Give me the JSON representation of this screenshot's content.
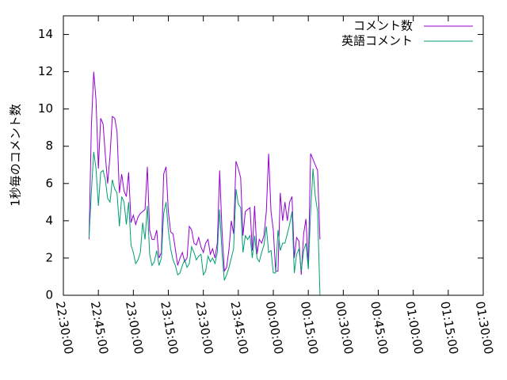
{
  "chart_data": {
    "type": "line",
    "title": "",
    "xlabel": "",
    "ylabel": "1秒毎のコメント数",
    "ylim": [
      0,
      15
    ],
    "yticks": [
      0,
      2,
      4,
      6,
      8,
      10,
      12,
      14
    ],
    "xlim": [
      "22:30:00",
      "01:30:00"
    ],
    "xtick_labels": [
      "22:30:00",
      "22:45:00",
      "23:00:00",
      "23:15:00",
      "23:30:00",
      "23:45:00",
      "00:00:00",
      "00:15:00",
      "00:30:00",
      "00:45:00",
      "01:00:00",
      "01:15:00",
      "01:30:00"
    ],
    "grid": false,
    "legend_position": "top-right",
    "series": [
      {
        "name": "コメント数",
        "color": "#9400d3",
        "points": [
          [
            "22:41:00",
            3.0
          ],
          [
            "22:42:00",
            9.0
          ],
          [
            "22:43:00",
            12.0
          ],
          [
            "22:44:00",
            10.5
          ],
          [
            "22:45:00",
            6.8
          ],
          [
            "22:46:00",
            9.5
          ],
          [
            "22:47:00",
            9.2
          ],
          [
            "22:48:00",
            7.5
          ],
          [
            "22:49:00",
            6.0
          ],
          [
            "22:50:00",
            7.5
          ],
          [
            "22:51:00",
            9.6
          ],
          [
            "22:52:00",
            9.5
          ],
          [
            "22:53:00",
            8.8
          ],
          [
            "22:54:00",
            5.5
          ],
          [
            "22:55:00",
            6.5
          ],
          [
            "22:56:00",
            5.6
          ],
          [
            "22:57:00",
            5.3
          ],
          [
            "22:58:00",
            6.6
          ],
          [
            "22:59:00",
            3.9
          ],
          [
            "23:00:00",
            4.3
          ],
          [
            "23:01:00",
            3.8
          ],
          [
            "23:02:00",
            4.2
          ],
          [
            "23:03:00",
            4.4
          ],
          [
            "23:04:00",
            4.5
          ],
          [
            "23:05:00",
            4.6
          ],
          [
            "23:06:00",
            6.9
          ],
          [
            "23:07:00",
            3.5
          ],
          [
            "23:08:00",
            3.0
          ],
          [
            "23:09:00",
            3.0
          ],
          [
            "23:10:00",
            3.5
          ],
          [
            "23:11:00",
            2.0
          ],
          [
            "23:12:00",
            2.3
          ],
          [
            "23:13:00",
            6.5
          ],
          [
            "23:14:00",
            6.9
          ],
          [
            "23:15:00",
            4.5
          ],
          [
            "23:16:00",
            3.4
          ],
          [
            "23:17:00",
            3.3
          ],
          [
            "23:18:00",
            2.5
          ],
          [
            "23:19:00",
            1.6
          ],
          [
            "23:20:00",
            2.0
          ],
          [
            "23:21:00",
            2.3
          ],
          [
            "23:22:00",
            1.8
          ],
          [
            "23:23:00",
            2.0
          ],
          [
            "23:24:00",
            3.7
          ],
          [
            "23:25:00",
            3.5
          ],
          [
            "23:26:00",
            2.8
          ],
          [
            "23:27:00",
            2.7
          ],
          [
            "23:28:00",
            3.1
          ],
          [
            "23:29:00",
            2.6
          ],
          [
            "23:30:00",
            2.3
          ],
          [
            "23:31:00",
            2.8
          ],
          [
            "23:32:00",
            3.0
          ],
          [
            "23:33:00",
            2.2
          ],
          [
            "23:34:00",
            2.5
          ],
          [
            "23:35:00",
            2.0
          ],
          [
            "23:36:00",
            2.8
          ],
          [
            "23:37:00",
            6.7
          ],
          [
            "23:38:00",
            3.5
          ],
          [
            "23:39:00",
            1.3
          ],
          [
            "23:40:00",
            1.5
          ],
          [
            "23:41:00",
            2.5
          ],
          [
            "23:42:00",
            4.0
          ],
          [
            "23:43:00",
            3.3
          ],
          [
            "23:44:00",
            7.2
          ],
          [
            "23:45:00",
            6.8
          ],
          [
            "23:46:00",
            6.3
          ],
          [
            "23:47:00",
            3.2
          ],
          [
            "23:48:00",
            4.5
          ],
          [
            "23:49:00",
            4.6
          ],
          [
            "23:50:00",
            4.7
          ],
          [
            "23:51:00",
            2.4
          ],
          [
            "23:52:00",
            4.8
          ],
          [
            "23:53:00",
            2.2
          ],
          [
            "23:54:00",
            3.0
          ],
          [
            "23:55:00",
            2.8
          ],
          [
            "23:56:00",
            3.2
          ],
          [
            "23:57:00",
            4.5
          ],
          [
            "23:58:00",
            7.6
          ],
          [
            "23:59:00",
            4.5
          ],
          [
            "00:00:00",
            3.5
          ],
          [
            "00:01:00",
            1.3
          ],
          [
            "00:02:00",
            1.3
          ],
          [
            "00:03:00",
            5.5
          ],
          [
            "00:04:00",
            4.0
          ],
          [
            "00:05:00",
            5.0
          ],
          [
            "00:06:00",
            4.0
          ],
          [
            "00:07:00",
            5.0
          ],
          [
            "00:08:00",
            5.3
          ],
          [
            "00:09:00",
            2.0
          ],
          [
            "00:10:00",
            3.1
          ],
          [
            "00:11:00",
            2.9
          ],
          [
            "00:12:00",
            1.1
          ],
          [
            "00:13:00",
            3.3
          ],
          [
            "00:14:00",
            4.1
          ],
          [
            "00:15:00",
            1.5
          ],
          [
            "00:16:00",
            7.6
          ],
          [
            "00:17:00",
            7.3
          ],
          [
            "00:18:00",
            7.0
          ],
          [
            "00:19:00",
            6.7
          ],
          [
            "00:20:00",
            3.0
          ]
        ]
      },
      {
        "name": "英語コメント",
        "color": "#009e73",
        "points": [
          [
            "22:41:00",
            3.1
          ],
          [
            "22:42:00",
            5.5
          ],
          [
            "22:43:00",
            7.7
          ],
          [
            "22:44:00",
            6.8
          ],
          [
            "22:45:00",
            4.8
          ],
          [
            "22:46:00",
            6.6
          ],
          [
            "22:47:00",
            6.7
          ],
          [
            "22:48:00",
            6.2
          ],
          [
            "22:49:00",
            5.2
          ],
          [
            "22:50:00",
            5.0
          ],
          [
            "22:51:00",
            6.2
          ],
          [
            "22:52:00",
            5.7
          ],
          [
            "22:53:00",
            5.5
          ],
          [
            "22:54:00",
            3.7
          ],
          [
            "22:55:00",
            5.3
          ],
          [
            "22:56:00",
            5.0
          ],
          [
            "22:57:00",
            3.8
          ],
          [
            "22:58:00",
            5.0
          ],
          [
            "22:59:00",
            2.7
          ],
          [
            "23:00:00",
            2.3
          ],
          [
            "23:01:00",
            1.7
          ],
          [
            "23:02:00",
            1.9
          ],
          [
            "23:03:00",
            2.3
          ],
          [
            "23:04:00",
            3.9
          ],
          [
            "23:05:00",
            3.0
          ],
          [
            "23:06:00",
            4.8
          ],
          [
            "23:07:00",
            2.2
          ],
          [
            "23:08:00",
            1.6
          ],
          [
            "23:09:00",
            1.8
          ],
          [
            "23:10:00",
            2.4
          ],
          [
            "23:11:00",
            1.6
          ],
          [
            "23:12:00",
            2.0
          ],
          [
            "23:13:00",
            4.4
          ],
          [
            "23:14:00",
            5.0
          ],
          [
            "23:15:00",
            3.5
          ],
          [
            "23:16:00",
            2.5
          ],
          [
            "23:17:00",
            1.9
          ],
          [
            "23:18:00",
            1.6
          ],
          [
            "23:19:00",
            1.1
          ],
          [
            "23:20:00",
            1.2
          ],
          [
            "23:21:00",
            1.6
          ],
          [
            "23:22:00",
            1.9
          ],
          [
            "23:23:00",
            1.5
          ],
          [
            "23:24:00",
            1.7
          ],
          [
            "23:25:00",
            2.6
          ],
          [
            "23:26:00",
            2.3
          ],
          [
            "23:27:00",
            1.9
          ],
          [
            "23:28:00",
            2.1
          ],
          [
            "23:29:00",
            2.2
          ],
          [
            "23:30:00",
            1.1
          ],
          [
            "23:31:00",
            1.3
          ],
          [
            "23:32:00",
            2.1
          ],
          [
            "23:33:00",
            1.8
          ],
          [
            "23:34:00",
            2.0
          ],
          [
            "23:35:00",
            1.7
          ],
          [
            "23:36:00",
            2.3
          ],
          [
            "23:37:00",
            4.6
          ],
          [
            "23:38:00",
            2.3
          ],
          [
            "23:39:00",
            0.8
          ],
          [
            "23:40:00",
            1.1
          ],
          [
            "23:41:00",
            1.5
          ],
          [
            "23:42:00",
            2.0
          ],
          [
            "23:43:00",
            2.5
          ],
          [
            "23:44:00",
            5.7
          ],
          [
            "23:45:00",
            4.9
          ],
          [
            "23:46:00",
            4.7
          ],
          [
            "23:47:00",
            2.3
          ],
          [
            "23:48:00",
            3.2
          ],
          [
            "23:49:00",
            3.0
          ],
          [
            "23:50:00",
            3.2
          ],
          [
            "23:51:00",
            2.0
          ],
          [
            "23:52:00",
            3.2
          ],
          [
            "23:53:00",
            2.0
          ],
          [
            "23:54:00",
            1.8
          ],
          [
            "23:55:00",
            2.3
          ],
          [
            "23:56:00",
            2.7
          ],
          [
            "23:57:00",
            3.7
          ],
          [
            "23:58:00",
            2.3
          ],
          [
            "23:59:00",
            2.4
          ],
          [
            "00:00:00",
            1.2
          ],
          [
            "00:01:00",
            1.2
          ],
          [
            "00:02:00",
            3.5
          ],
          [
            "00:03:00",
            2.4
          ],
          [
            "00:04:00",
            2.8
          ],
          [
            "00:05:00",
            2.8
          ],
          [
            "00:06:00",
            3.3
          ],
          [
            "00:07:00",
            3.8
          ],
          [
            "00:08:00",
            4.5
          ],
          [
            "00:09:00",
            1.2
          ],
          [
            "00:10:00",
            2.2
          ],
          [
            "00:11:00",
            2.5
          ],
          [
            "00:12:00",
            1.3
          ],
          [
            "00:13:00",
            2.4
          ],
          [
            "00:14:00",
            2.8
          ],
          [
            "00:15:00",
            1.4
          ],
          [
            "00:16:00",
            4.5
          ],
          [
            "00:17:00",
            6.8
          ],
          [
            "00:18:00",
            5.3
          ],
          [
            "00:19:00",
            4.5
          ],
          [
            "00:20:00",
            0.0
          ]
        ]
      }
    ]
  }
}
